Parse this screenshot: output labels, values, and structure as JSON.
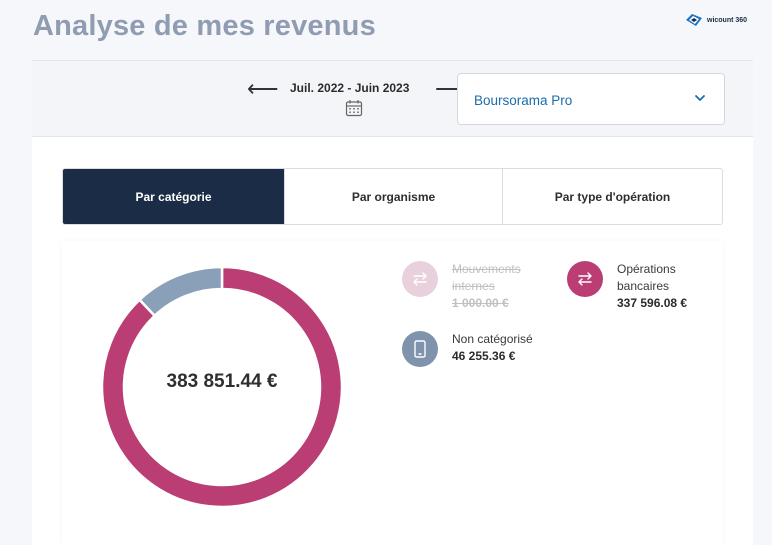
{
  "page": {
    "title": "Analyse de mes revenus"
  },
  "logo": {
    "text": "wicount 360"
  },
  "toolbar": {
    "prev_icon": "arrow-left-icon",
    "next_icon": "arrow-right-icon",
    "period": "Juil. 2022 - Juin 2023",
    "calendar_icon": "calendar-icon"
  },
  "account_select": {
    "value": "Boursorama Pro",
    "icon": "chevron-down-icon"
  },
  "tabs": [
    {
      "label": "Par catégorie",
      "active": true
    },
    {
      "label": "Par organisme",
      "active": false
    },
    {
      "label": "Par type d'opération",
      "active": false
    }
  ],
  "chart_data": {
    "type": "pie",
    "total_label": "383 851.44 €",
    "slices": [
      {
        "label": "Opérations bancaires",
        "value": 337596.08,
        "color": "#ba3d73"
      },
      {
        "label": "Non catégorisé",
        "value": 46255.36,
        "color": "#8a9fb8"
      }
    ]
  },
  "legend": [
    {
      "label": "Mouvements internes",
      "amount": "1 000.00 €",
      "disabled": true,
      "color": "#e8d0dc",
      "icon": "transfer-arrows-icon"
    },
    {
      "label": "Opérations bancaires",
      "amount": "337 596.08 €",
      "disabled": false,
      "color": "#ba3d73",
      "icon": "transfer-arrows-icon"
    },
    {
      "label": "Non catégorisé",
      "amount": "46 255.36 €",
      "disabled": false,
      "color": "#7f93ad",
      "icon": "mobile-phone-icon"
    }
  ]
}
